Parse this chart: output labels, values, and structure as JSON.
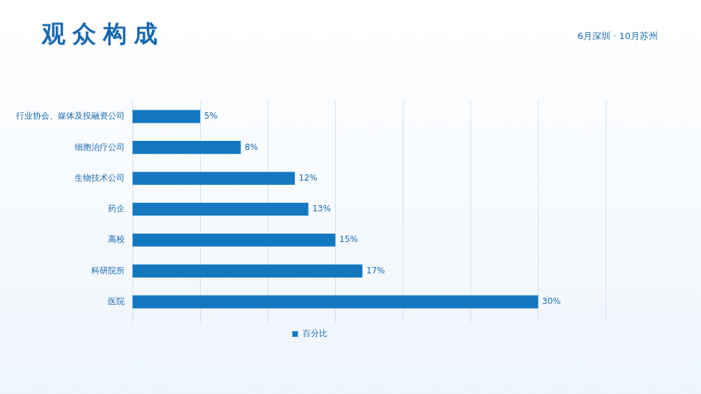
{
  "chart_data": {
    "type": "bar",
    "orientation": "horizontal",
    "title": "观众构成",
    "subtitle": "6月深圳 · 10月苏州",
    "categories": [
      "行业协会、媒体及投融资公司",
      "细胞治疗公司",
      "生物技术公司",
      "药企",
      "高校",
      "科研院所",
      "医院"
    ],
    "series": [
      {
        "name": "百分比",
        "color": "#1478c0",
        "values": [
          5,
          8,
          12,
          13,
          15,
          17,
          30
        ],
        "value_labels": [
          "5%",
          "8%",
          "12%",
          "13%",
          "15%",
          "17%",
          "30%"
        ]
      }
    ],
    "xlim": [
      0,
      35
    ],
    "xticks": [
      {
        "value": 0,
        "label": null
      },
      {
        "value": 5,
        "label": null
      },
      {
        "value": 10,
        "label": null
      },
      {
        "value": 15,
        "label": null
      },
      {
        "value": 20,
        "label": null
      },
      {
        "value": 25,
        "label": null
      },
      {
        "value": 30,
        "label": null
      },
      {
        "value": 35,
        "label": null
      }
    ],
    "tick_labels": "y",
    "grid": "x",
    "legend": "bottom"
  }
}
